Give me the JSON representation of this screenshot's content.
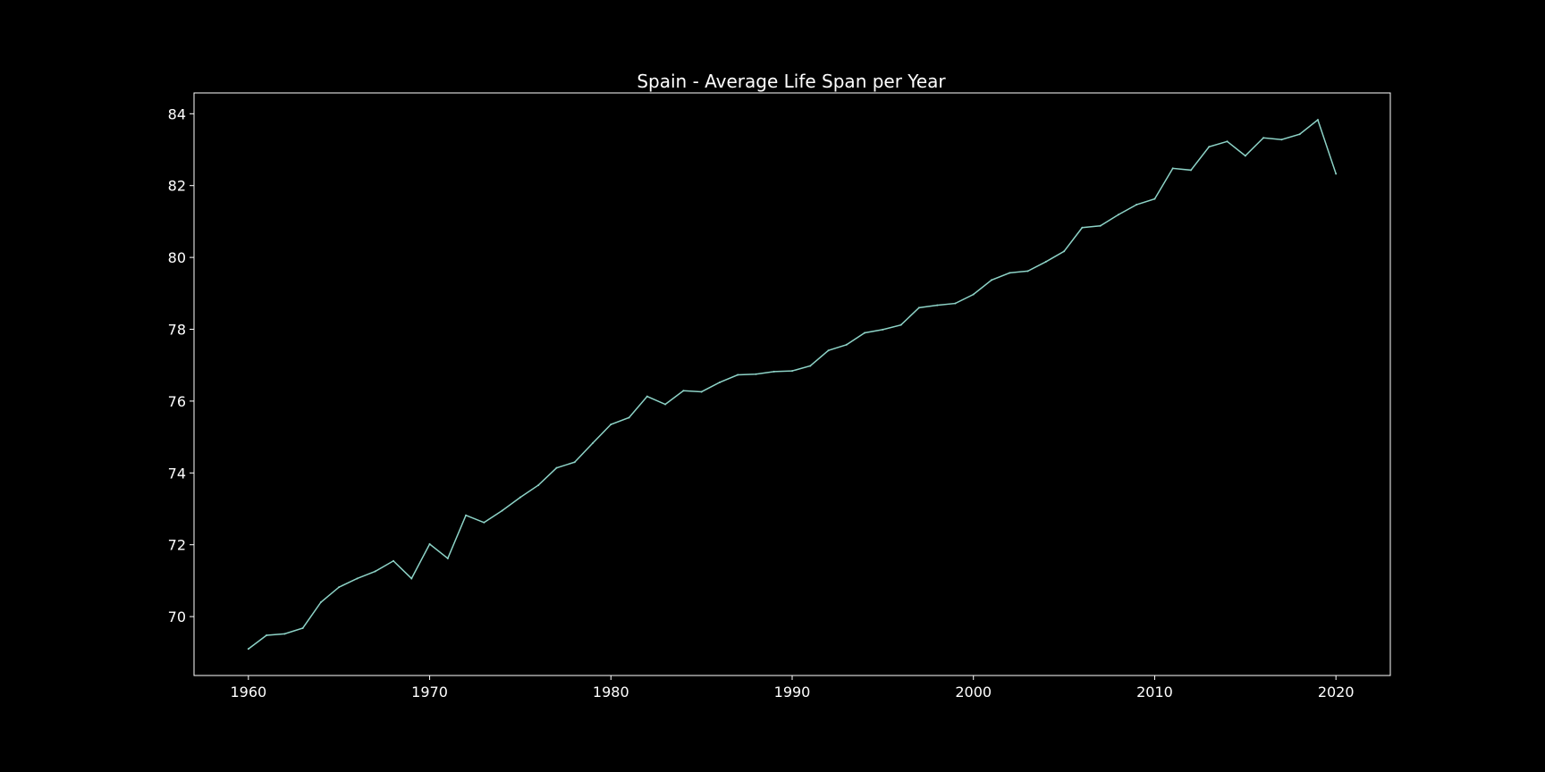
{
  "chart_data": {
    "type": "line",
    "title": "Spain - Average Life Span per Year",
    "xlabel": "",
    "ylabel": "",
    "xlim": [
      1957,
      2023
    ],
    "ylim": [
      68.36,
      84.58
    ],
    "x_ticks": [
      1960,
      1970,
      1980,
      1990,
      2000,
      2010,
      2020
    ],
    "y_ticks": [
      70,
      72,
      74,
      76,
      78,
      80,
      82,
      84
    ],
    "grid": false,
    "legend": "none",
    "colors": {
      "background": "#000000",
      "line": "#8dd3c7",
      "axes": "#ffffff",
      "text": "#ffffff"
    },
    "series": [
      {
        "x": [
          1960,
          1961,
          1962,
          1963,
          1964,
          1965,
          1966,
          1967,
          1968,
          1969,
          1970,
          1971,
          1972,
          1973,
          1974,
          1975,
          1976,
          1977,
          1978,
          1979,
          1980,
          1981,
          1982,
          1983,
          1984,
          1985,
          1986,
          1987,
          1988,
          1989,
          1990,
          1991,
          1992,
          1993,
          1994,
          1995,
          1996,
          1997,
          1998,
          1999,
          2000,
          2001,
          2002,
          2003,
          2004,
          2005,
          2006,
          2007,
          2008,
          2009,
          2010,
          2011,
          2012,
          2013,
          2014,
          2015,
          2016,
          2017,
          2018,
          2019,
          2020
        ],
        "y": [
          69.1,
          69.48,
          69.52,
          69.68,
          70.4,
          70.82,
          71.06,
          71.26,
          71.55,
          71.06,
          72.02,
          71.62,
          72.82,
          72.62,
          72.95,
          73.32,
          73.66,
          74.14,
          74.3,
          74.83,
          75.35,
          75.54,
          76.13,
          75.91,
          76.29,
          76.26,
          76.52,
          76.73,
          76.75,
          76.82,
          76.84,
          76.98,
          77.41,
          77.57,
          77.9,
          77.99,
          78.12,
          78.6,
          78.67,
          78.72,
          78.97,
          79.37,
          79.57,
          79.62,
          79.88,
          80.17,
          80.83,
          80.88,
          81.19,
          81.47,
          81.63,
          82.48,
          82.43,
          83.08,
          83.23,
          82.83,
          83.33,
          83.28,
          83.43,
          83.83,
          82.33
        ]
      }
    ]
  }
}
